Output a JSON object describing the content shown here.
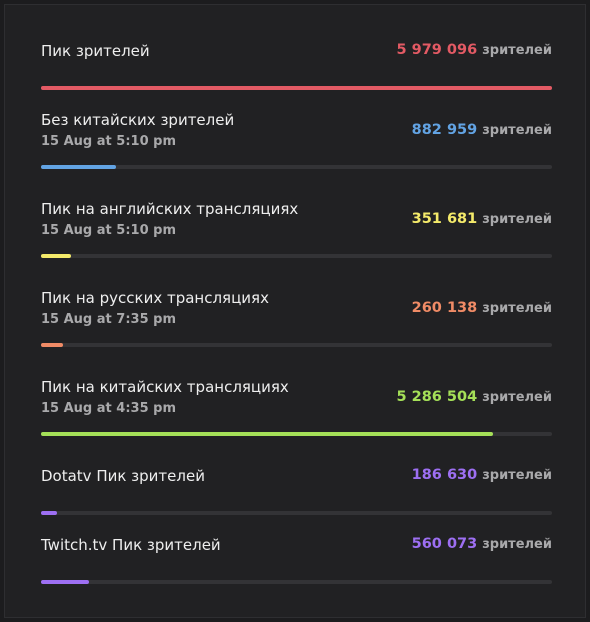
{
  "rows": [
    {
      "label": "Пик зрителей",
      "value": 5979096,
      "value_label": "5 979 096",
      "unit": "зрителей",
      "color": "#e35a64"
    },
    {
      "label": "Без китайских зрителей",
      "date": "15 Aug at 5:10 pm",
      "value": 882959,
      "value_label": "882 959",
      "unit": "зрителей",
      "color": "#62a3e3"
    },
    {
      "label": "Пик на английских трансляциях",
      "date": "15 Aug at 5:10 pm",
      "value": 351681,
      "value_label": "351 681",
      "unit": "зрителей",
      "color": "#f4ea6a"
    },
    {
      "label": "Пик на русских трансляциях",
      "date": "15 Aug at 7:35 pm",
      "value": 260138,
      "value_label": "260 138",
      "unit": "зрителей",
      "color": "#f08b66"
    },
    {
      "label": "Пик на китайских трансляциях",
      "date": "15 Aug at 4:35 pm",
      "value": 5286504,
      "value_label": "5 286 504",
      "unit": "зрителей",
      "color": "#a5e058"
    },
    {
      "label": "Dotatv Пик зрителей",
      "value": 186630,
      "value_label": "186 630",
      "unit": "зрителей",
      "color": "#9d6ff2"
    },
    {
      "label": "Twitch.tv Пик зрителей",
      "value": 560073,
      "value_label": "560 073",
      "unit": "зрителей",
      "color": "#9d6ff2"
    }
  ]
}
